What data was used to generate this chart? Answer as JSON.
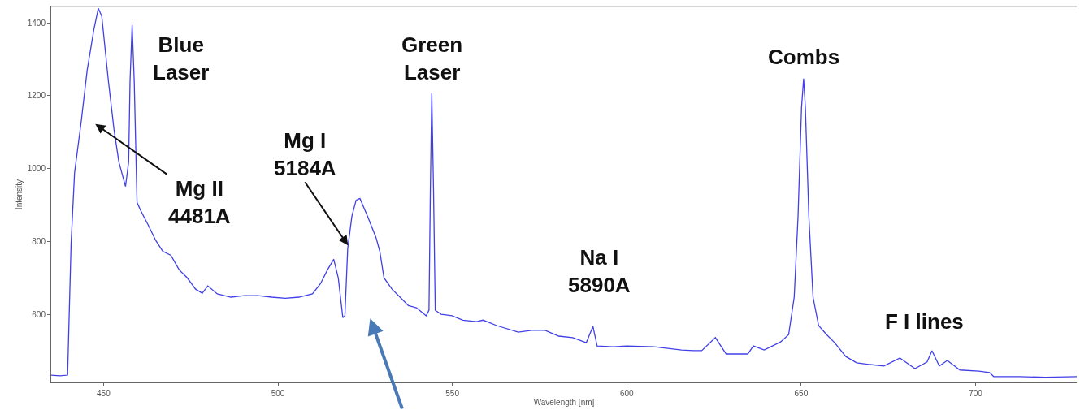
{
  "chart_data": {
    "type": "line",
    "xlabel": "Wavelength [nm]",
    "ylabel": "Intensity",
    "xlim": [
      435,
      729
    ],
    "xticks": [
      450,
      500,
      550,
      600,
      650,
      700
    ],
    "ylim": [
      413,
      1445
    ],
    "yticks": [
      600,
      800,
      1000,
      1200,
      1400
    ],
    "marker": "none",
    "line_style": "solid",
    "series": [
      {
        "color": "#4040e8",
        "x": [
          435,
          437.5,
          439.7,
          440.7,
          441.7,
          443.6,
          445.3,
          447.2,
          448.5,
          449.5,
          451.4,
          453,
          454.4,
          456.3,
          457.2,
          457.6,
          458.2,
          458.8,
          459.6,
          460.7,
          462.7,
          465,
          467,
          469.3,
          471.7,
          474,
          476.4,
          478.3,
          479.9,
          482.6,
          486.5,
          490.4,
          494.3,
          498.2,
          502.1,
          506,
          509.9,
          512.2,
          514.2,
          516,
          517.3,
          518.6,
          519.2,
          520,
          521.2,
          522.4,
          523.5,
          525.7,
          528.1,
          529.2,
          530.4,
          532.7,
          535,
          537.4,
          539.7,
          542.5,
          543.3,
          543.7,
          544.1,
          544.6,
          545.1,
          546.8,
          549.9,
          553,
          556.9,
          558.8,
          562.7,
          568.9,
          572.7,
          576.6,
          580.5,
          584.5,
          588.4,
          590.3,
          591.5,
          596.1,
          600,
          607.9,
          615.7,
          619.2,
          621.5,
          625.4,
          628.5,
          634.7,
          636.3,
          639.4,
          644.1,
          646.4,
          648,
          649.1,
          650.1,
          650.7,
          651.2,
          652.2,
          653.4,
          655,
          657.3,
          659.6,
          662.8,
          665.9,
          669.8,
          673.7,
          678.3,
          682.6,
          686.1,
          687.5,
          689.6,
          691.9,
          695.5,
          700.9,
          704,
          705.2,
          712.6,
          720,
          729
        ],
        "values": [
          433,
          431,
          433,
          795,
          989,
          1129,
          1269,
          1380,
          1440,
          1418,
          1240,
          1107,
          1018,
          951,
          1018,
          1240,
          1395,
          1240,
          907,
          884,
          847,
          802,
          773,
          762,
          722,
          700,
          669,
          658,
          678,
          656,
          647,
          651,
          651,
          647,
          644,
          647,
          656,
          684,
          722,
          751,
          700,
          591,
          596,
          780,
          869,
          913,
          918,
          869,
          811,
          773,
          700,
          669,
          647,
          624,
          618,
          596,
          611,
          944,
          1207,
          944,
          611,
          600,
          596,
          584,
          580,
          584,
          569,
          551,
          556,
          556,
          540,
          536,
          522,
          567,
          513,
          511,
          513,
          511,
          502,
          500,
          500,
          536,
          491,
          491,
          513,
          502,
          524,
          544,
          647,
          869,
          1167,
          1247,
          1167,
          869,
          647,
          569,
          544,
          522,
          484,
          467,
          462,
          458,
          480,
          451,
          469,
          500,
          458,
          473,
          447,
          444,
          440,
          429,
          429,
          427,
          429
        ]
      }
    ],
    "annotations": [
      {
        "text": "Blue\nLaser",
        "x": 458.2,
        "y": 1395
      },
      "Mg II\n4481A",
      {
        "text": "Mg I\n5184A",
        "x": 520.1,
        "y": 789
      },
      {
        "text": "Green\nLaser",
        "x": 544.1,
        "y": 1207
      },
      {
        "text": "Na I\n5890A",
        "x": 590.3,
        "y": 567
      },
      {
        "text": "Combs",
        "x": 650.7,
        "y": 1247
      },
      {
        "text": "F I lines",
        "x": 687.5,
        "y": 500
      }
    ]
  }
}
